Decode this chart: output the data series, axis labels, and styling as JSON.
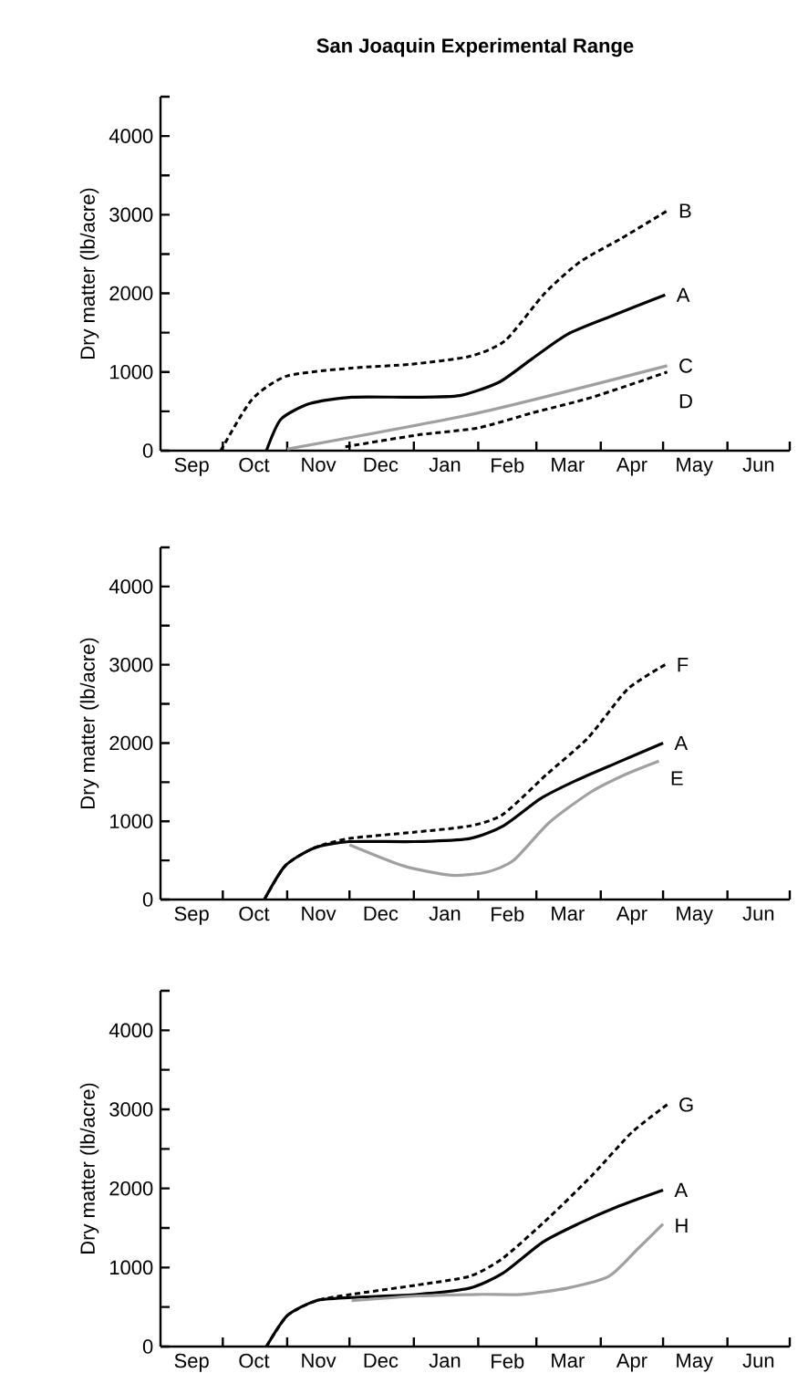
{
  "chart_data": [
    {
      "type": "line",
      "title": "San Joaquin Experimental Range",
      "ylabel": "Dry matter (lb/acre)",
      "xlim": [
        "2000-09-01",
        "2001-07-01"
      ],
      "ylim": [
        0,
        4500
      ],
      "xticks": [
        {
          "value": "2000-09-16",
          "label": "Sep"
        },
        {
          "value": "2000-10-16",
          "label": "Oct"
        },
        {
          "value": "2000-11-16",
          "label": "Nov"
        },
        {
          "value": "2000-12-16",
          "label": "Dec"
        },
        {
          "value": "2001-01-16",
          "label": "Jan"
        },
        {
          "value": "2001-02-15",
          "label": "Feb"
        },
        {
          "value": "2001-03-16",
          "label": "Mar"
        },
        {
          "value": "2001-04-16",
          "label": "Apr"
        },
        {
          "value": "2001-05-16",
          "label": "May"
        },
        {
          "value": "2001-06-16",
          "label": "Jun"
        },
        {
          "value": "2000-10-01",
          "label": null
        },
        {
          "value": "2000-11-01",
          "label": null
        },
        {
          "value": "2000-12-01",
          "label": null
        },
        {
          "value": "2001-01-01",
          "label": null
        },
        {
          "value": "2001-02-01",
          "label": null
        },
        {
          "value": "2001-03-01",
          "label": null
        },
        {
          "value": "2001-04-01",
          "label": null
        },
        {
          "value": "2001-05-01",
          "label": null
        },
        {
          "value": "2001-06-01",
          "label": null
        },
        {
          "value": "2001-07-01",
          "label": null
        }
      ],
      "yticks": [
        0,
        {
          "value": 500,
          "label": null
        },
        1000,
        {
          "value": 1500,
          "label": null
        },
        2000,
        {
          "value": 2500,
          "label": null
        },
        3000,
        {
          "value": 3500,
          "label": null
        },
        4000,
        {
          "value": 4500,
          "label": null
        }
      ],
      "series": [
        {
          "name": "B",
          "color": "#000000",
          "line_style": "dashed",
          "x": [
            "2000-09-30",
            "2000-10-15",
            "2000-11-01",
            "2000-12-02",
            "2000-12-31",
            "2001-01-28",
            "2001-02-14",
            "2001-03-05",
            "2001-03-22",
            "2001-04-11",
            "2001-05-03"
          ],
          "values": [
            0,
            650,
            950,
            1050,
            1100,
            1200,
            1400,
            2000,
            2400,
            2700,
            3050
          ]
        },
        {
          "name": "A",
          "color": "#000000",
          "line_style": "solid",
          "x": [
            "2000-10-22",
            "2000-10-29",
            "2000-11-12",
            "2000-12-02",
            "2000-12-31",
            "2001-01-23",
            "2001-02-11",
            "2001-02-27",
            "2001-03-16",
            "2001-04-05",
            "2001-05-02"
          ],
          "values": [
            0,
            400,
            600,
            680,
            680,
            700,
            870,
            1170,
            1480,
            1700,
            1980
          ]
        },
        {
          "name": "C",
          "color": "#a0a0a0",
          "line_style": "solid",
          "x": [
            "2000-11-01",
            "2001-02-01",
            "2001-05-03"
          ],
          "values": [
            20,
            480,
            1080
          ]
        },
        {
          "name": "D",
          "color": "#000000",
          "line_style": "dashed",
          "x": [
            "2000-11-29",
            "2001-01-03",
            "2001-02-01",
            "2001-02-27",
            "2001-03-28",
            "2001-05-03"
          ],
          "values": [
            50,
            200,
            290,
            480,
            680,
            1000
          ]
        }
      ]
    },
    {
      "type": "line",
      "ylabel": "Dry matter (lb/acre)",
      "xlim": [
        "2000-09-01",
        "2001-07-01"
      ],
      "ylim": [
        0,
        4500
      ],
      "xticks": [
        {
          "value": "2000-09-16",
          "label": "Sep"
        },
        {
          "value": "2000-10-16",
          "label": "Oct"
        },
        {
          "value": "2000-11-16",
          "label": "Nov"
        },
        {
          "value": "2000-12-16",
          "label": "Dec"
        },
        {
          "value": "2001-01-16",
          "label": "Jan"
        },
        {
          "value": "2001-02-15",
          "label": "Feb"
        },
        {
          "value": "2001-03-16",
          "label": "Mar"
        },
        {
          "value": "2001-04-16",
          "label": "Apr"
        },
        {
          "value": "2001-05-16",
          "label": "May"
        },
        {
          "value": "2001-06-16",
          "label": "Jun"
        },
        {
          "value": "2000-10-01",
          "label": null
        },
        {
          "value": "2000-11-01",
          "label": null
        },
        {
          "value": "2000-12-01",
          "label": null
        },
        {
          "value": "2001-01-01",
          "label": null
        },
        {
          "value": "2001-02-01",
          "label": null
        },
        {
          "value": "2001-03-01",
          "label": null
        },
        {
          "value": "2001-04-01",
          "label": null
        },
        {
          "value": "2001-05-01",
          "label": null
        },
        {
          "value": "2001-06-01",
          "label": null
        },
        {
          "value": "2001-07-01",
          "label": null
        }
      ],
      "yticks": [
        0,
        {
          "value": 500,
          "label": null
        },
        1000,
        {
          "value": 1500,
          "label": null
        },
        2000,
        {
          "value": 2500,
          "label": null
        },
        3000,
        {
          "value": 3500,
          "label": null
        },
        4000,
        {
          "value": 4500,
          "label": null
        }
      ],
      "series": [
        {
          "name": "F",
          "color": "#000000",
          "line_style": "dashed",
          "x": [
            "2000-10-21",
            "2000-10-31",
            "2000-11-14",
            "2000-12-01",
            "2001-01-01",
            "2001-01-28",
            "2001-02-13",
            "2001-03-06",
            "2001-03-26",
            "2001-04-14",
            "2001-05-02"
          ],
          "values": [
            0,
            430,
            660,
            780,
            860,
            940,
            1090,
            1600,
            2070,
            2690,
            3000
          ]
        },
        {
          "name": "A",
          "color": "#000000",
          "line_style": "solid",
          "x": [
            "2000-10-21",
            "2000-10-31",
            "2000-11-14",
            "2000-12-01",
            "2001-01-01",
            "2001-01-28",
            "2001-02-13",
            "2001-03-03",
            "2001-03-20",
            "2001-04-09",
            "2001-05-01"
          ],
          "values": [
            0,
            430,
            660,
            740,
            740,
            780,
            940,
            1290,
            1520,
            1750,
            2000
          ]
        },
        {
          "name": "E",
          "color": "#a0a0a0",
          "line_style": "solid",
          "x": [
            "2000-12-01",
            "2000-12-27",
            "2001-01-19",
            "2001-02-05",
            "2001-02-18",
            "2001-03-07",
            "2001-03-27",
            "2001-04-13",
            "2001-04-29"
          ],
          "values": [
            700,
            430,
            310,
            350,
            500,
            980,
            1370,
            1600,
            1770
          ]
        }
      ]
    },
    {
      "type": "line",
      "ylabel": "Dry matter (lb/acre)",
      "xlim": [
        "2000-09-01",
        "2001-07-01"
      ],
      "ylim": [
        0,
        4500
      ],
      "xticks": [
        {
          "value": "2000-09-16",
          "label": "Sep"
        },
        {
          "value": "2000-10-16",
          "label": "Oct"
        },
        {
          "value": "2000-11-16",
          "label": "Nov"
        },
        {
          "value": "2000-12-16",
          "label": "Dec"
        },
        {
          "value": "2001-01-16",
          "label": "Jan"
        },
        {
          "value": "2001-02-15",
          "label": "Feb"
        },
        {
          "value": "2001-03-16",
          "label": "Mar"
        },
        {
          "value": "2001-04-16",
          "label": "Apr"
        },
        {
          "value": "2001-05-16",
          "label": "May"
        },
        {
          "value": "2001-06-16",
          "label": "Jun"
        },
        {
          "value": "2000-10-01",
          "label": null
        },
        {
          "value": "2000-11-01",
          "label": null
        },
        {
          "value": "2000-12-01",
          "label": null
        },
        {
          "value": "2001-01-01",
          "label": null
        },
        {
          "value": "2001-02-01",
          "label": null
        },
        {
          "value": "2001-03-01",
          "label": null
        },
        {
          "value": "2001-04-01",
          "label": null
        },
        {
          "value": "2001-05-01",
          "label": null
        },
        {
          "value": "2001-06-01",
          "label": null
        },
        {
          "value": "2001-07-01",
          "label": null
        }
      ],
      "yticks": [
        0,
        {
          "value": 500,
          "label": null
        },
        1000,
        {
          "value": 1500,
          "label": null
        },
        2000,
        {
          "value": 2500,
          "label": null
        },
        3000,
        {
          "value": 3500,
          "label": null
        },
        4000,
        {
          "value": 4500,
          "label": null
        }
      ],
      "series": [
        {
          "name": "G",
          "color": "#000000",
          "line_style": "dashed",
          "x": [
            "2000-10-22",
            "2000-11-01",
            "2000-11-15",
            "2000-12-02",
            "2001-01-03",
            "2001-01-28",
            "2001-02-13",
            "2001-03-07",
            "2001-03-28",
            "2001-04-16",
            "2001-05-03"
          ],
          "values": [
            0,
            390,
            580,
            660,
            780,
            890,
            1120,
            1630,
            2170,
            2710,
            3060
          ]
        },
        {
          "name": "A",
          "color": "#000000",
          "line_style": "solid",
          "x": [
            "2000-10-22",
            "2000-11-01",
            "2000-11-15",
            "2000-12-02",
            "2001-01-03",
            "2001-01-28",
            "2001-02-13",
            "2001-03-04",
            "2001-03-21",
            "2001-04-10",
            "2001-05-01"
          ],
          "values": [
            0,
            390,
            580,
            620,
            660,
            740,
            930,
            1320,
            1550,
            1780,
            1980
          ]
        },
        {
          "name": "H",
          "color": "#a0a0a0",
          "line_style": "solid",
          "x": [
            "2000-12-02",
            "2001-01-03",
            "2001-02-01",
            "2001-02-22",
            "2001-03-16",
            "2001-04-05",
            "2001-04-19",
            "2001-05-01"
          ],
          "values": [
            580,
            640,
            660,
            660,
            740,
            890,
            1240,
            1550
          ]
        }
      ]
    }
  ]
}
